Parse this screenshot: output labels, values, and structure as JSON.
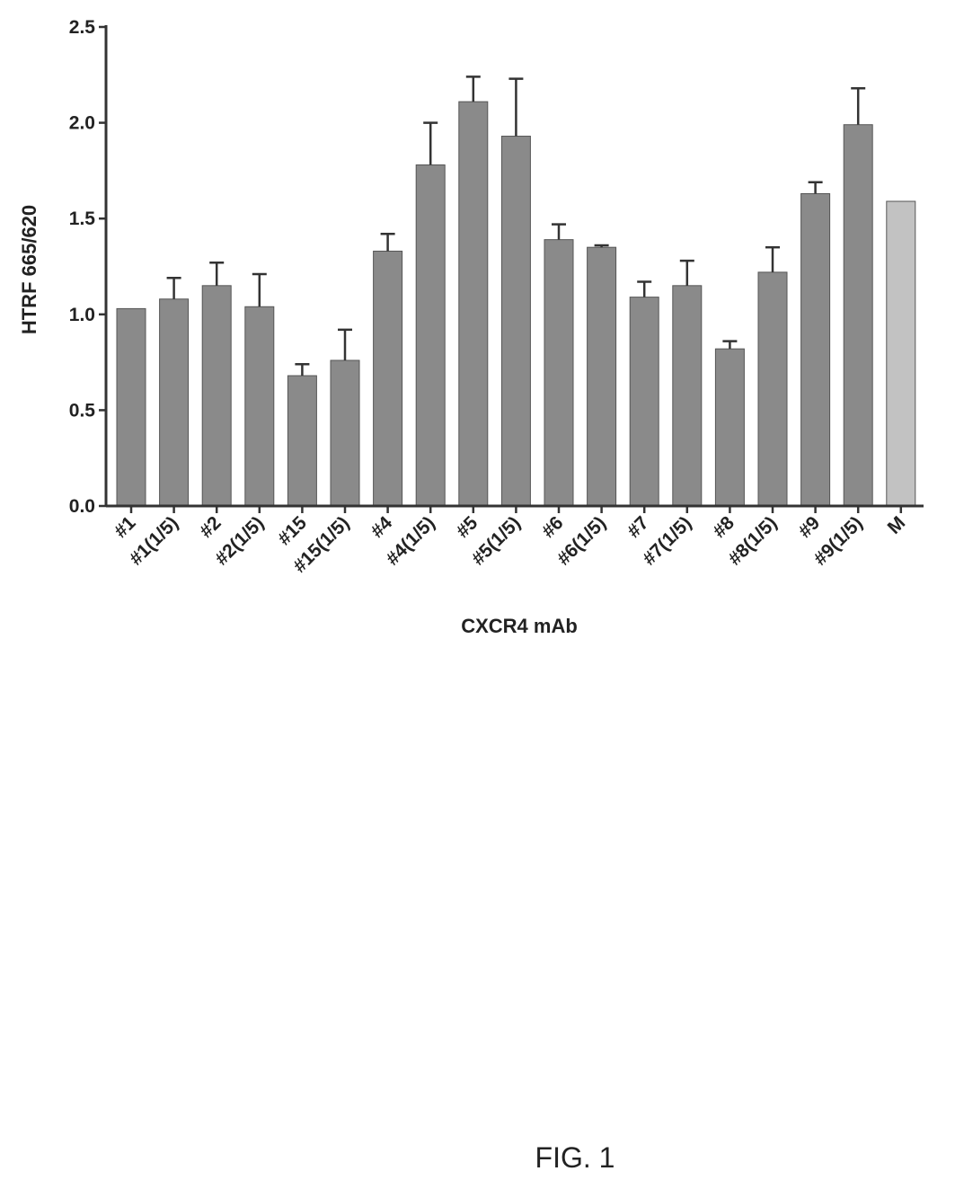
{
  "chart_data": {
    "type": "bar",
    "title": "",
    "xlabel": "CXCR4 mAb",
    "ylabel": "HTRF 665/620",
    "ylim": [
      0,
      2.5
    ],
    "yticks": [
      "0.0",
      "0.5",
      "1.0",
      "1.5",
      "2.0",
      "2.5"
    ],
    "grid": false,
    "categories": [
      "#1",
      "#1(1/5)",
      "#2",
      "#2(1/5)",
      "#15",
      "#15(1/5)",
      "#4",
      "#4(1/5)",
      "#5",
      "#5(1/5)",
      "#6",
      "#6(1/5)",
      "#7",
      "#7(1/5)",
      "#8",
      "#8(1/5)",
      "#9",
      "#9(1/5)",
      "M"
    ],
    "values": [
      1.03,
      1.08,
      1.15,
      1.04,
      0.68,
      0.76,
      1.33,
      1.78,
      2.11,
      1.93,
      1.39,
      1.35,
      1.09,
      1.15,
      0.82,
      1.22,
      1.63,
      1.99,
      1.59
    ],
    "errors": [
      0.0,
      0.11,
      0.12,
      0.17,
      0.06,
      0.16,
      0.09,
      0.22,
      0.13,
      0.3,
      0.08,
      0.01,
      0.08,
      0.13,
      0.04,
      0.13,
      0.06,
      0.19,
      0.0
    ],
    "colors": {
      "bar": "#8a8a8a",
      "bar_last": "#c2c2c2",
      "axis": "#333333",
      "error": "#333333"
    }
  },
  "caption": "FIG. 1"
}
